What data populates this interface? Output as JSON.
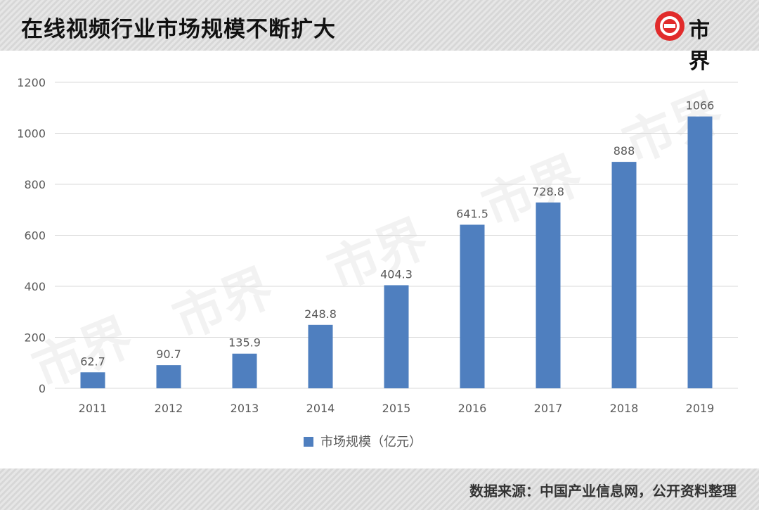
{
  "header": {
    "title": "在线视频行业市场规模不断扩大",
    "logo_text": "市界"
  },
  "footer": {
    "source": "数据来源：中国产业信息网，公开资料整理"
  },
  "watermark": "市界",
  "colors": {
    "bar": "#4f7fbf",
    "grid": "#d9d9d9",
    "axis_text": "#595959",
    "logo_red": "#e12b2b"
  },
  "chart_data": {
    "type": "bar",
    "categories": [
      "2011",
      "2012",
      "2013",
      "2014",
      "2015",
      "2016",
      "2017",
      "2018",
      "2019"
    ],
    "series": [
      {
        "name": "市场规模（亿元）",
        "values": [
          62.7,
          90.7,
          135.9,
          248.8,
          404.3,
          641.5,
          728.8,
          888,
          1066
        ]
      }
    ],
    "data_labels": [
      "62.7",
      "90.7",
      "135.9",
      "248.8",
      "404.3",
      "641.5",
      "728.8",
      "888",
      "1066"
    ],
    "yticks": [
      0,
      200,
      400,
      600,
      800,
      1000,
      1200
    ],
    "ylim": [
      0,
      1200
    ],
    "grid": true,
    "legend_position": "bottom-center",
    "title": "",
    "xlabel": "",
    "ylabel": ""
  }
}
